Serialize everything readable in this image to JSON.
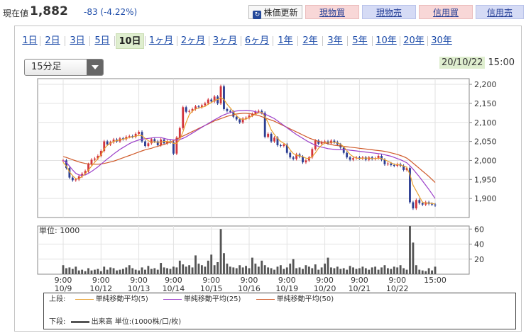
{
  "header": {
    "price_label": "現在値",
    "price_value": "1,882",
    "price_change": "-83 (-4.22%)",
    "refresh_label": "株価更新",
    "buttons": [
      "現物買",
      "現物売",
      "信用買",
      "信用売"
    ]
  },
  "period_tabs": [
    "1日",
    "2日",
    "3日",
    "5日",
    "10日",
    "1ヶ月",
    "2ヶ月",
    "3ヶ月",
    "6ヶ月",
    "1年",
    "2年",
    "3年",
    "5年",
    "10年",
    "20年",
    "30年"
  ],
  "active_tab": "10日",
  "interval_select": "15分足",
  "datetime": {
    "date": "20/10/22",
    "time": "15:00"
  },
  "colors": {
    "ma5": "#e8a030",
    "ma25": "#9b3fc9",
    "ma50": "#d05a2a",
    "candle_up": "#d2343c",
    "candle_down": "#2c3e92",
    "volume": "#555555"
  },
  "legend": {
    "upper_label": "上段:",
    "ma5": "単純移動平均(5)",
    "ma25": "単純移動平均(25)",
    "ma50": "単純移動平均(50)",
    "lower_label": "下段:",
    "volume": "出来高 単位:(1000株/口/枚)"
  },
  "chart_data": {
    "type": "line",
    "title": "",
    "x_ticks": [
      {
        "time": "9:00",
        "date": "10/9"
      },
      {
        "time": "9:00",
        "date": "10/12"
      },
      {
        "time": "9:00",
        "date": "10/13"
      },
      {
        "time": "9:00",
        "date": "10/14"
      },
      {
        "time": "9:00",
        "date": "10/15"
      },
      {
        "time": "9:00",
        "date": "10/16"
      },
      {
        "time": "9:00",
        "date": "10/19"
      },
      {
        "time": "9:00",
        "date": "10/20"
      },
      {
        "time": "9:00",
        "date": "10/21"
      },
      {
        "time": "9:00",
        "date": "10/22"
      },
      {
        "time": "15:00",
        "date": ""
      }
    ],
    "price_axis": {
      "ylim": [
        1850,
        2215
      ],
      "ticks": [
        "2,200",
        "2,150",
        "2,100",
        "2,050",
        "2,000",
        "1,950",
        "1,900"
      ]
    },
    "volume_axis": {
      "label": "単位: 1000",
      "ylim": [
        0,
        64
      ],
      "ticks": [
        "60",
        "40",
        "20"
      ]
    },
    "price_close": [
      2000,
      1980,
      1955,
      1948,
      1950,
      1958,
      1965,
      1972,
      1990,
      2002,
      2005,
      2012,
      2025,
      2050,
      2042,
      2048,
      2055,
      2050,
      2058,
      2056,
      2062,
      2064,
      2062,
      2070,
      2075,
      2050,
      2038,
      2045,
      2056,
      2050,
      2040,
      2055,
      2045,
      2050,
      2048,
      2018,
      2060,
      2085,
      2140,
      2128,
      2130,
      2135,
      2142,
      2140,
      2145,
      2150,
      2160,
      2155,
      2168,
      2150,
      2195,
      2135,
      2130,
      2128,
      2115,
      2108,
      2100,
      2110,
      2112,
      2118,
      2122,
      2128,
      2130,
      2125,
      2062,
      2070,
      2050,
      2060,
      2040,
      2038,
      2042,
      2020,
      2008,
      2004,
      2016,
      2010,
      1995,
      2000,
      2008,
      2030,
      2052,
      2044,
      2048,
      2050,
      2045,
      2052,
      2048,
      2042,
      2034,
      2020,
      2008,
      2002,
      2006,
      2008,
      2005,
      2008,
      2002,
      2008,
      2004,
      2006,
      2012,
      2002,
      1990,
      1992,
      1988,
      1986,
      1990,
      1986,
      1975,
      1980,
      1890,
      1874,
      1896,
      1888,
      1884,
      1890,
      1886,
      1884,
      1882
    ],
    "ma5": [
      1995,
      1985,
      1970,
      1960,
      1952,
      1952,
      1958,
      1965,
      1975,
      1985,
      1995,
      2005,
      2015,
      2030,
      2040,
      2045,
      2050,
      2052,
      2054,
      2056,
      2058,
      2060,
      2062,
      2064,
      2066,
      2065,
      2058,
      2052,
      2048,
      2049,
      2048,
      2048,
      2050,
      2050,
      2049,
      2045,
      2045,
      2055,
      2075,
      2100,
      2120,
      2130,
      2135,
      2138,
      2140,
      2142,
      2148,
      2152,
      2158,
      2160,
      2165,
      2160,
      2148,
      2138,
      2128,
      2118,
      2110,
      2108,
      2109,
      2113,
      2117,
      2121,
      2125,
      2126,
      2115,
      2100,
      2080,
      2068,
      2058,
      2050,
      2045,
      2040,
      2028,
      2018,
      2014,
      2012,
      2010,
      2006,
      2005,
      2010,
      2020,
      2032,
      2040,
      2046,
      2048,
      2048,
      2048,
      2046,
      2043,
      2036,
      2026,
      2016,
      2010,
      2006,
      2005,
      2006,
      2006,
      2006,
      2005,
      2005,
      2006,
      2005,
      2002,
      1998,
      1994,
      1990,
      1989,
      1988,
      1985,
      1982,
      1963,
      1935,
      1920,
      1905,
      1890,
      1888,
      1888,
      1887,
      1885
    ],
    "ma25": [
      2000,
      1995,
      1985,
      1975,
      1966,
      1962,
      1961,
      1962,
      1966,
      1971,
      1977,
      1983,
      1990,
      1997,
      2004,
      2010,
      2017,
      2023,
      2029,
      2034,
      2039,
      2044,
      2048,
      2051,
      2054,
      2056,
      2057,
      2058,
      2059,
      2060,
      2060,
      2060,
      2058,
      2056,
      2055,
      2054,
      2054,
      2055,
      2058,
      2062,
      2067,
      2072,
      2077,
      2082,
      2087,
      2092,
      2097,
      2102,
      2107,
      2111,
      2116,
      2120,
      2123,
      2126,
      2128,
      2130,
      2131,
      2131,
      2132,
      2131,
      2130,
      2128,
      2126,
      2124,
      2122,
      2118,
      2114,
      2110,
      2104,
      2098,
      2092,
      2086,
      2080,
      2074,
      2068,
      2063,
      2058,
      2053,
      2048,
      2044,
      2040,
      2037,
      2035,
      2033,
      2031,
      2030,
      2029,
      2028,
      2028,
      2028,
      2028,
      2027,
      2026,
      2025,
      2024,
      2023,
      2022,
      2021,
      2020,
      2019,
      2018,
      2017,
      2015,
      2013,
      2011,
      2008,
      2005,
      2002,
      1998,
      1994,
      1986,
      1977,
      1967,
      1957,
      1946,
      1935,
      1924,
      1912,
      1900
    ],
    "ma50": [
      2010,
      2008,
      2005,
      2002,
      1999,
      1996,
      1994,
      1992,
      1991,
      1990,
      1990,
      1990,
      1991,
      1992,
      1994,
      1996,
      1998,
      2001,
      2004,
      2007,
      2010,
      2013,
      2016,
      2019,
      2022,
      2025,
      2028,
      2030,
      2032,
      2035,
      2037,
      2040,
      2042,
      2045,
      2048,
      2052,
      2056,
      2060,
      2064,
      2068,
      2072,
      2076,
      2080,
      2084,
      2088,
      2092,
      2096,
      2100,
      2104,
      2107,
      2110,
      2113,
      2116,
      2118,
      2120,
      2122,
      2123,
      2124,
      2124,
      2123,
      2122,
      2120,
      2118,
      2115,
      2112,
      2109,
      2106,
      2103,
      2099,
      2095,
      2091,
      2087,
      2083,
      2079,
      2075,
      2071,
      2067,
      2063,
      2059,
      2056,
      2053,
      2050,
      2048,
      2046,
      2044,
      2042,
      2040,
      2039,
      2038,
      2037,
      2036,
      2035,
      2034,
      2033,
      2032,
      2031,
      2030,
      2029,
      2028,
      2027,
      2026,
      2025,
      2024,
      2022,
      2020,
      2018,
      2016,
      2013,
      2010,
      2006,
      2000,
      1993,
      1986,
      1979,
      1972,
      1965,
      1958,
      1950,
      1942
    ],
    "volume": [
      12,
      8,
      9,
      7,
      10,
      5,
      6,
      4,
      8,
      5,
      6,
      7,
      4,
      10,
      6,
      9,
      8,
      5,
      6,
      7,
      9,
      12,
      8,
      6,
      5,
      9,
      6,
      11,
      7,
      8,
      6,
      15,
      9,
      8,
      7,
      10,
      9,
      18,
      13,
      10,
      12,
      9,
      25,
      14,
      12,
      10,
      18,
      26,
      12,
      16,
      60,
      28,
      14,
      10,
      9,
      8,
      12,
      9,
      11,
      8,
      22,
      14,
      10,
      18,
      12,
      9,
      8,
      6,
      10,
      12,
      7,
      9,
      14,
      20,
      8,
      9,
      7,
      12,
      10,
      8,
      13,
      6,
      9,
      14,
      22,
      9,
      8,
      10,
      7,
      8,
      6,
      11,
      9,
      7,
      8,
      10,
      8,
      6,
      9,
      10,
      6,
      9,
      12,
      8,
      7,
      10,
      9,
      12,
      8,
      6,
      64,
      42,
      12,
      6,
      5,
      4,
      8,
      5,
      10
    ]
  }
}
